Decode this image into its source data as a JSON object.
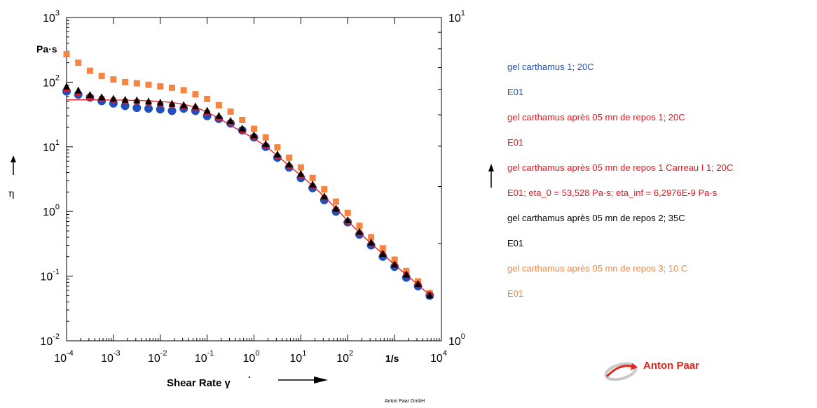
{
  "chart_data": {
    "type": "scatter",
    "x_scale": "log",
    "y_scale": "log",
    "xlim": [
      0.0001,
      10000
    ],
    "ylim": [
      0.01,
      1000
    ],
    "y2lim": [
      1,
      10
    ],
    "x_ticks": [
      {
        "base": "10",
        "exp": "-4"
      },
      {
        "base": "10",
        "exp": "-3"
      },
      {
        "base": "10",
        "exp": "-2"
      },
      {
        "base": "10",
        "exp": "-1"
      },
      {
        "base": "10",
        "exp": "0"
      },
      {
        "base": "10",
        "exp": "1"
      },
      {
        "base": "10",
        "exp": "2"
      },
      {
        "base": "10",
        "exp": "4"
      }
    ],
    "y_ticks": [
      {
        "base": "10",
        "exp": "-2"
      },
      {
        "base": "10",
        "exp": "-1"
      },
      {
        "base": "10",
        "exp": "0"
      },
      {
        "base": "10",
        "exp": "1"
      },
      {
        "base": "10",
        "exp": "2"
      },
      {
        "base": "10",
        "exp": "3"
      }
    ],
    "y2_ticks": [
      {
        "base": "10",
        "exp": "0"
      },
      {
        "base": "10",
        "exp": "1"
      }
    ],
    "x_unit_label": "1/s",
    "y_unit_label": "Pa·s",
    "xlabel": "Shear Rate γ",
    "ylabel": "η",
    "grid": false,
    "legend_position": "right",
    "shear_rate": [
      0.0001,
      0.000178,
      0.000316,
      0.000562,
      0.001,
      0.00178,
      0.00316,
      0.00562,
      0.01,
      0.0178,
      0.0316,
      0.0562,
      0.1,
      0.178,
      0.316,
      0.562,
      1,
      1.78,
      3.16,
      5.62,
      10,
      17.8,
      31.6,
      56.2,
      100,
      178,
      316,
      562,
      1000,
      1780,
      3160,
      5620
    ],
    "series": [
      {
        "name": "gel carthamus 1; 20C",
        "color": "#1f4fbf",
        "marker": "circle",
        "y": [
          72,
          64,
          58,
          51,
          47,
          43,
          40,
          39,
          38,
          36,
          39,
          36,
          30,
          27,
          23,
          18,
          14,
          10,
          6.8,
          4.8,
          3.3,
          2.3,
          1.5,
          1.0,
          0.68,
          0.44,
          0.3,
          0.2,
          0.14,
          0.095,
          0.07,
          0.05
        ]
      },
      {
        "name": "gel carthamus après 05 mn de repos 1; 20C",
        "color": "#e8141b",
        "marker": "circle",
        "y": [
          78,
          68,
          60,
          56,
          53,
          51,
          50,
          48,
          46,
          44,
          42,
          40,
          34,
          28,
          24,
          18,
          14.5,
          10.5,
          7.2,
          5.1,
          3.6,
          2.5,
          1.65,
          1.08,
          0.7,
          0.47,
          0.32,
          0.22,
          0.15,
          0.105,
          0.075,
          0.052
        ]
      },
      {
        "name": "gel carthamus après 05 mn de repos 1 Carreau I 1; 20C",
        "color": "#e8141b",
        "marker": "line",
        "eta_0": 53.528,
        "eta_inf": 6.2976e-09,
        "y": [
          53.4,
          53.3,
          53.2,
          53.1,
          53.0,
          52.7,
          52.2,
          51.5,
          50.3,
          48.5,
          45.5,
          41.0,
          34.5,
          27.5,
          21.5,
          17.0,
          13.5,
          10.2,
          7.3,
          5.1,
          3.6,
          2.5,
          1.7,
          1.12,
          0.72,
          0.47,
          0.32,
          0.22,
          0.15,
          0.105,
          0.074,
          0.051
        ]
      },
      {
        "name": "gel carthamus après 05 mn de repos 2; 35C",
        "color": "#000000",
        "marker": "triangle",
        "y": [
          85,
          74,
          63,
          58,
          55,
          53,
          52,
          50,
          48,
          46,
          44,
          42,
          36,
          30,
          25,
          19,
          15,
          11,
          7.6,
          5.3,
          3.8,
          2.6,
          1.7,
          1.1,
          0.73,
          0.48,
          0.33,
          0.22,
          0.15,
          0.105,
          0.075,
          0.05
        ]
      },
      {
        "name": "gel carthamus après 05 mn de repos 3; 10 C",
        "color": "#f58540",
        "marker": "square",
        "y": [
          270,
          200,
          150,
          125,
          110,
          100,
          96,
          91,
          86,
          82,
          75,
          65,
          55,
          44,
          35,
          26,
          19,
          14,
          9.8,
          6.8,
          4.8,
          3.3,
          2.2,
          1.42,
          0.95,
          0.6,
          0.4,
          0.27,
          0.18,
          0.12,
          0.083,
          0.055
        ]
      }
    ]
  },
  "legend": [
    {
      "text": "gel carthamus 1; 20C",
      "color": "#1f4fbf"
    },
    {
      "text": "E01",
      "color": "#1f4fbf"
    },
    {
      "text": "gel carthamus après 05 mn de repos 1; 20C",
      "color": "#e8141b"
    },
    {
      "text": "E01",
      "color": "#e8141b"
    },
    {
      "text": "gel carthamus après 05 mn de repos 1 Carreau I 1; 20C",
      "color": "#e8141b"
    },
    {
      "text": "E01; eta_0 = 53,528 Pa·s; eta_inf = 6,2976E-9 Pa·s",
      "color": "#e8141b"
    },
    {
      "text": "gel carthamus après 05 mn de repos 2; 35C",
      "color": "#000000"
    },
    {
      "text": "E01",
      "color": "#000000"
    },
    {
      "text": "gel carthamus après 05 mn de repos 3; 10 C",
      "color": "#f58540"
    },
    {
      "text": "E01",
      "color": "#f58540"
    }
  ],
  "brand": {
    "name": "Anton Paar",
    "company": "Anton Paar GmbH",
    "color": "#e2231a"
  }
}
